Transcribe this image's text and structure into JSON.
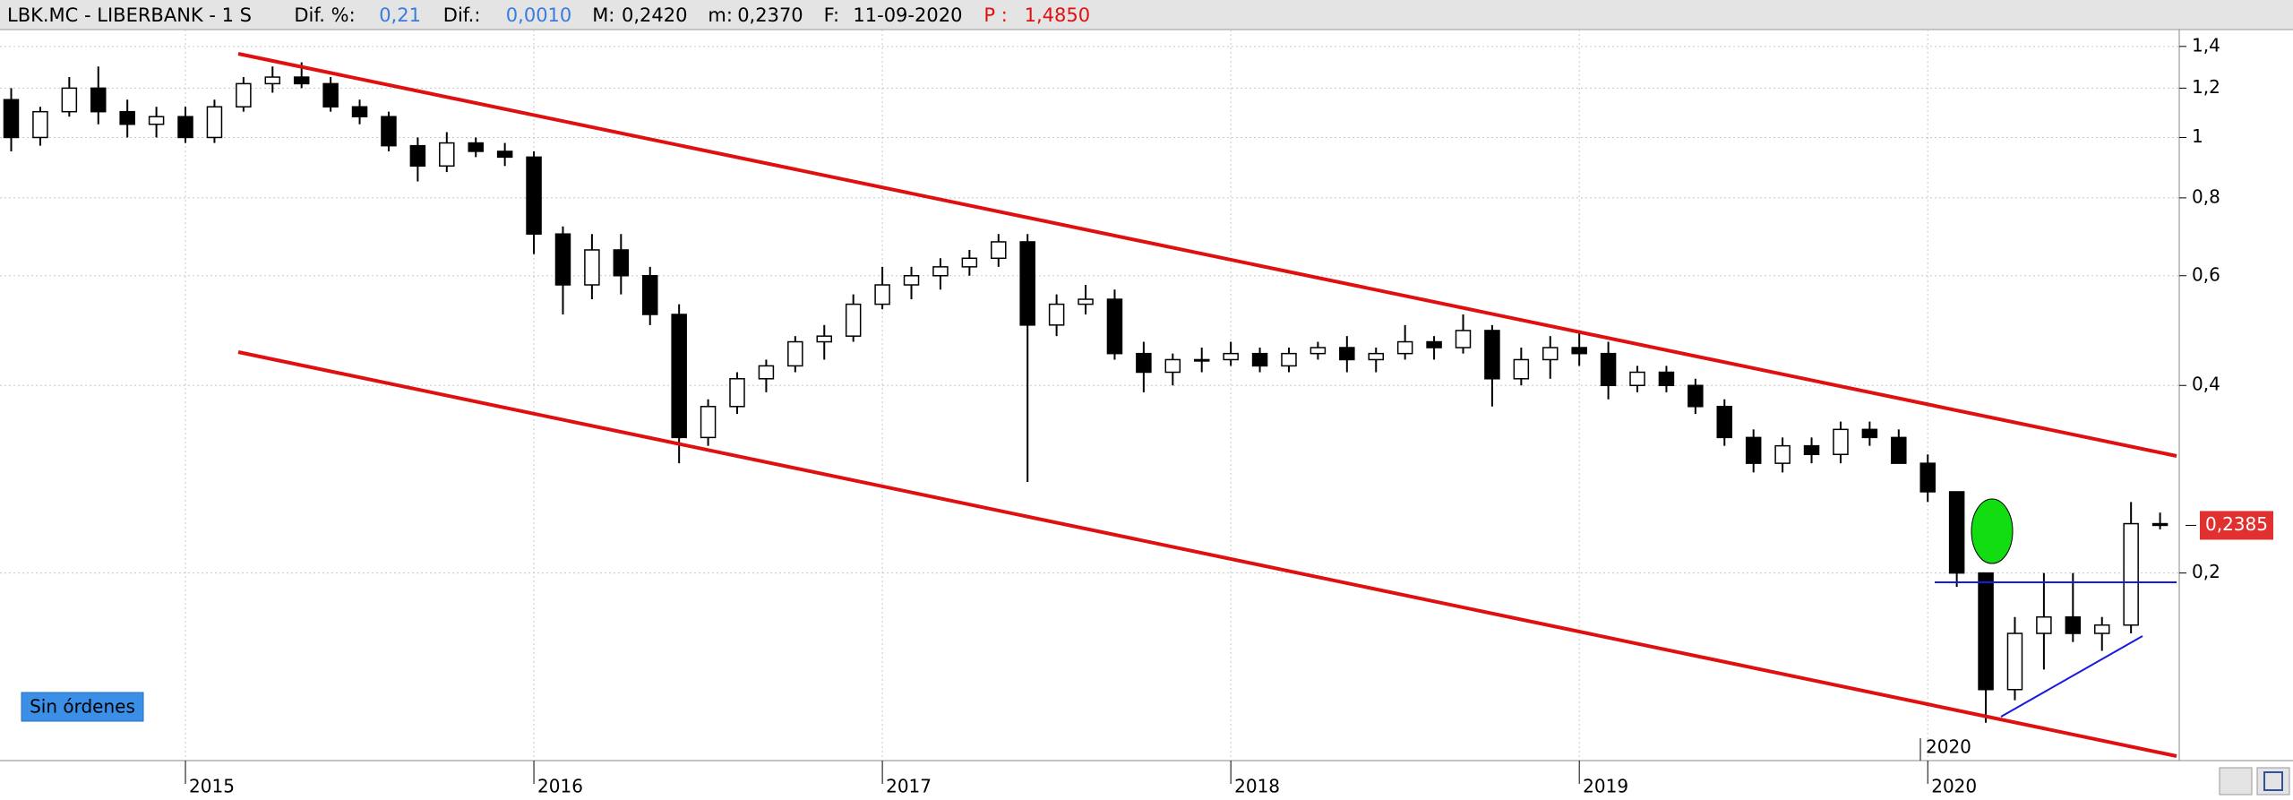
{
  "header": {
    "symbol": "LBK.MC - LIBERBANK - 1 S",
    "fields": [
      {
        "label": "Dif. %:",
        "value": "0,21"
      },
      {
        "label": "Dif.:",
        "value": "0,0010"
      },
      {
        "label": "M:",
        "value": "0,2420"
      },
      {
        "label": "m:",
        "value": "0,2370"
      },
      {
        "label": "F:",
        "value": "11-09-2020"
      },
      {
        "label": "P :",
        "value": "1,4850"
      }
    ]
  },
  "button": "Sin órdenes",
  "chart_data": {
    "type": "candlestick",
    "log_scale": true,
    "grid": true,
    "up_color": "#ffffff",
    "down_color": "#000000",
    "ylim": [
      0.1,
      1.49
    ],
    "yticks": [
      {
        "value": 1.4,
        "label": "1,4"
      },
      {
        "value": 1.2,
        "label": "1,2"
      },
      1,
      {
        "value": 0.8,
        "label": "0,8"
      },
      {
        "value": 0.6,
        "label": "0,6"
      },
      {
        "value": 0.4,
        "label": "0,4"
      },
      {
        "value": 0.2,
        "label": "0,2"
      }
    ],
    "price_marker": {
      "value": 0.2385,
      "label": "0,2385"
    },
    "annotation": "2020",
    "categories": [
      null,
      null,
      null,
      null,
      null,
      null,
      "2015",
      null,
      null,
      null,
      null,
      null,
      null,
      null,
      null,
      null,
      null,
      null,
      "2016",
      null,
      null,
      null,
      null,
      null,
      null,
      null,
      null,
      null,
      null,
      null,
      "2017",
      null,
      null,
      null,
      null,
      null,
      null,
      null,
      null,
      null,
      null,
      null,
      "2018",
      null,
      null,
      null,
      null,
      null,
      null,
      null,
      null,
      null,
      null,
      null,
      "2019",
      null,
      null,
      null,
      null,
      null,
      null,
      null,
      null,
      null,
      null,
      null,
      "2020",
      null,
      null,
      null,
      null,
      null,
      null,
      null,
      null
    ],
    "open": [
      1.15,
      1.0,
      1.1,
      1.2,
      1.1,
      1.05,
      1.08,
      1.0,
      1.12,
      1.22,
      1.25,
      1.22,
      1.12,
      1.08,
      0.97,
      0.9,
      0.98,
      0.95,
      0.93,
      0.7,
      0.58,
      0.66,
      0.6,
      0.52,
      0.33,
      0.37,
      0.41,
      0.43,
      0.47,
      0.48,
      0.54,
      0.58,
      0.6,
      0.62,
      0.64,
      0.68,
      0.5,
      0.54,
      0.55,
      0.45,
      0.42,
      0.44,
      0.44,
      0.45,
      0.43,
      0.45,
      0.46,
      0.44,
      0.45,
      0.47,
      0.46,
      0.49,
      0.41,
      0.44,
      0.46,
      0.45,
      0.4,
      0.42,
      0.4,
      0.37,
      0.33,
      0.3,
      0.32,
      0.31,
      0.34,
      0.33,
      0.3,
      0.27,
      0.2,
      0.13,
      0.16,
      0.17,
      0.16,
      0.165,
      0.24
    ],
    "high": [
      1.2,
      1.12,
      1.25,
      1.3,
      1.15,
      1.12,
      1.12,
      1.15,
      1.25,
      1.3,
      1.32,
      1.25,
      1.15,
      1.1,
      1.0,
      1.02,
      1.0,
      0.98,
      0.95,
      0.72,
      0.7,
      0.7,
      0.62,
      0.54,
      0.38,
      0.42,
      0.44,
      0.48,
      0.5,
      0.56,
      0.62,
      0.62,
      0.64,
      0.66,
      0.7,
      0.7,
      0.56,
      0.58,
      0.57,
      0.47,
      0.45,
      0.46,
      0.47,
      0.46,
      0.46,
      0.47,
      0.48,
      0.46,
      0.5,
      0.48,
      0.52,
      0.5,
      0.46,
      0.48,
      0.49,
      0.47,
      0.43,
      0.43,
      0.41,
      0.38,
      0.34,
      0.33,
      0.33,
      0.35,
      0.35,
      0.34,
      0.31,
      0.27,
      0.2,
      0.17,
      0.2,
      0.2,
      0.17,
      0.26,
      0.25
    ],
    "low": [
      0.95,
      0.97,
      1.08,
      1.05,
      1.0,
      1.0,
      0.98,
      0.98,
      1.1,
      1.18,
      1.2,
      1.1,
      1.05,
      0.95,
      0.85,
      0.88,
      0.93,
      0.9,
      0.65,
      0.52,
      0.55,
      0.56,
      0.5,
      0.3,
      0.32,
      0.36,
      0.39,
      0.42,
      0.44,
      0.47,
      0.53,
      0.55,
      0.57,
      0.6,
      0.62,
      0.28,
      0.48,
      0.52,
      0.44,
      0.39,
      0.4,
      0.42,
      0.43,
      0.42,
      0.42,
      0.44,
      0.42,
      0.42,
      0.44,
      0.44,
      0.45,
      0.37,
      0.4,
      0.41,
      0.43,
      0.38,
      0.39,
      0.39,
      0.36,
      0.32,
      0.29,
      0.29,
      0.3,
      0.3,
      0.32,
      0.3,
      0.26,
      0.19,
      0.115,
      0.125,
      0.14,
      0.155,
      0.15,
      0.16,
      0.235
    ],
    "close": [
      1.0,
      1.1,
      1.2,
      1.1,
      1.05,
      1.08,
      1.0,
      1.12,
      1.22,
      1.25,
      1.22,
      1.12,
      1.08,
      0.97,
      0.9,
      0.98,
      0.95,
      0.93,
      0.7,
      0.58,
      0.66,
      0.6,
      0.52,
      0.33,
      0.37,
      0.41,
      0.43,
      0.47,
      0.48,
      0.54,
      0.58,
      0.6,
      0.62,
      0.64,
      0.68,
      0.5,
      0.54,
      0.55,
      0.45,
      0.42,
      0.44,
      0.44,
      0.45,
      0.43,
      0.45,
      0.46,
      0.44,
      0.45,
      0.47,
      0.46,
      0.49,
      0.41,
      0.44,
      0.46,
      0.45,
      0.4,
      0.42,
      0.4,
      0.37,
      0.33,
      0.3,
      0.32,
      0.31,
      0.34,
      0.33,
      0.3,
      0.27,
      0.2,
      0.13,
      0.16,
      0.17,
      0.16,
      0.165,
      0.24,
      0.2385
    ]
  }
}
